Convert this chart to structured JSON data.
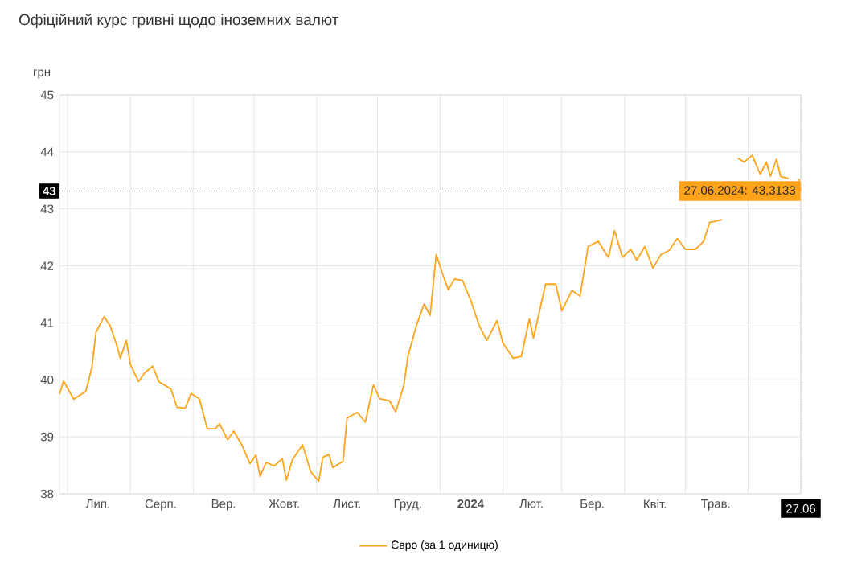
{
  "chart_data": {
    "type": "line",
    "title": "Офіційний курс гривні щодо іноземних валют",
    "ylabel": "грн",
    "x": [
      "2023-06-27",
      "2023-06-29",
      "2023-07-04",
      "2023-07-10",
      "2023-07-13",
      "2023-07-15",
      "2023-07-19",
      "2023-07-22",
      "2023-07-25",
      "2023-07-27",
      "2023-07-30",
      "2023-08-01",
      "2023-08-05",
      "2023-08-08",
      "2023-08-12",
      "2023-08-15",
      "2023-08-21",
      "2023-08-24",
      "2023-08-28",
      "2023-08-31",
      "2023-09-04",
      "2023-09-08",
      "2023-09-12",
      "2023-09-14",
      "2023-09-18",
      "2023-09-21",
      "2023-09-25",
      "2023-09-29",
      "2023-10-02",
      "2023-10-04",
      "2023-10-07",
      "2023-10-11",
      "2023-10-15",
      "2023-10-17",
      "2023-10-20",
      "2023-10-25",
      "2023-10-29",
      "2023-11-02",
      "2023-11-04",
      "2023-11-07",
      "2023-11-09",
      "2023-11-14",
      "2023-11-16",
      "2023-11-21",
      "2023-11-25",
      "2023-11-29",
      "2023-12-02",
      "2023-12-07",
      "2023-12-10",
      "2023-12-14",
      "2023-12-16",
      "2023-12-20",
      "2023-12-24",
      "2023-12-27",
      "2023-12-30",
      "2024-01-02",
      "2024-01-05",
      "2024-01-08",
      "2024-01-12",
      "2024-01-16",
      "2024-01-20",
      "2024-01-24",
      "2024-01-29",
      "2024-02-01",
      "2024-02-06",
      "2024-02-10",
      "2024-02-14",
      "2024-02-16",
      "2024-02-22",
      "2024-02-27",
      "2024-03-01",
      "2024-03-06",
      "2024-03-10",
      "2024-03-14",
      "2024-03-19",
      "2024-03-24",
      "2024-03-27",
      "2024-03-31",
      "2024-04-04",
      "2024-04-07",
      "2024-04-11",
      "2024-04-15",
      "2024-04-19",
      "2024-04-23",
      "2024-04-27",
      "2024-05-01",
      "2024-05-06",
      "2024-05-10",
      "2024-05-13",
      "2024-05-19",
      "2024-05-21",
      "2024-05-23",
      "2024-05-27",
      "2024-05-30",
      "2024-06-03",
      "2024-06-07",
      "2024-06-10",
      "2024-06-12",
      "2024-06-15",
      "2024-06-17",
      "2024-06-21",
      "2024-06-24",
      "2024-06-26",
      "2024-06-27"
    ],
    "series": [
      {
        "name": "Євро (за 1 одиницю)",
        "color": "#ffa31a",
        "values": [
          39.75,
          39.98,
          39.66,
          39.8,
          40.22,
          40.83,
          41.11,
          40.95,
          40.64,
          40.38,
          40.69,
          40.27,
          39.97,
          40.12,
          40.24,
          39.97,
          39.84,
          39.52,
          39.5,
          39.76,
          39.67,
          39.14,
          39.14,
          39.23,
          38.95,
          39.1,
          38.86,
          38.53,
          38.68,
          38.31,
          38.55,
          38.49,
          38.62,
          38.24,
          38.6,
          38.86,
          38.39,
          38.22,
          38.64,
          38.69,
          38.46,
          38.57,
          39.33,
          39.43,
          39.26,
          39.91,
          39.67,
          39.63,
          39.44,
          39.9,
          40.41,
          40.93,
          41.33,
          41.13,
          42.2,
          41.87,
          41.58,
          41.77,
          41.74,
          41.4,
          40.97,
          40.69,
          41.04,
          40.64,
          40.38,
          40.41,
          41.07,
          40.73,
          41.68,
          41.68,
          41.21,
          41.57,
          41.47,
          42.34,
          42.43,
          42.15,
          42.62,
          42.15,
          42.29,
          42.1,
          42.34,
          41.96,
          42.2,
          42.27,
          42.48,
          42.29,
          42.29,
          42.43,
          42.76,
          42.81,
          null,
          null,
          43.89,
          43.82,
          43.94,
          43.61,
          43.82,
          43.57,
          43.87,
          43.57,
          43.53,
          null,
          43.53,
          43.3133
        ]
      }
    ],
    "xlim": [
      "2023-06-27",
      "2024-06-27"
    ],
    "xticks": [
      {
        "value": "2023-07-01",
        "label": null
      },
      {
        "value": "2023-08-01",
        "label": null
      },
      {
        "value": "2023-09-01",
        "label": null
      },
      {
        "value": "2023-10-01",
        "label": null
      },
      {
        "value": "2023-11-01",
        "label": null
      },
      {
        "value": "2023-12-01",
        "label": null
      },
      {
        "value": "2024-01-01",
        "label": null
      },
      {
        "value": "2024-02-01",
        "label": null
      },
      {
        "value": "2024-03-01",
        "label": null
      },
      {
        "value": "2024-04-01",
        "label": null
      },
      {
        "value": "2024-05-01",
        "label": null
      },
      {
        "value": "2024-06-01",
        "label": null
      },
      {
        "value": "2023-07-16",
        "label": "Лип."
      },
      {
        "value": "2023-08-16",
        "label": "Серп."
      },
      {
        "value": "2023-09-16",
        "label": "Вер."
      },
      {
        "value": "2023-10-16",
        "label": "Жовт."
      },
      {
        "value": "2023-11-16",
        "label": "Лист."
      },
      {
        "value": "2023-12-16",
        "label": "Груд."
      },
      {
        "value": "2024-01-16",
        "label": "**2024**"
      },
      {
        "value": "2024-02-15",
        "label": "Лют."
      },
      {
        "value": "2024-03-16",
        "label": "Бер."
      },
      {
        "value": "2024-04-16",
        "label": "Квіт."
      },
      {
        "value": "2024-05-16",
        "label": "Трав."
      },
      {
        "value": "2024-06-27",
        "label": "27.06"
      }
    ],
    "ylim": [
      38,
      45
    ],
    "yticks": [
      38,
      39,
      40,
      41,
      42,
      43,
      44,
      45
    ],
    "grid": true,
    "legend": "bottom",
    "marker": "none",
    "line_style": "solid",
    "ref_lines": [
      {
        "axis": "y",
        "value": 43.3133,
        "label": "43",
        "line_style": "dotted",
        "color": "#999999"
      },
      {
        "axis": "x",
        "value": "2024-06-27",
        "line_style": "dotted",
        "color": "#cccccc"
      }
    ],
    "annotations": [
      {
        "text": "27.06.2024: 43,3133",
        "x": "2024-06-27",
        "y": 43.3133
      }
    ]
  }
}
